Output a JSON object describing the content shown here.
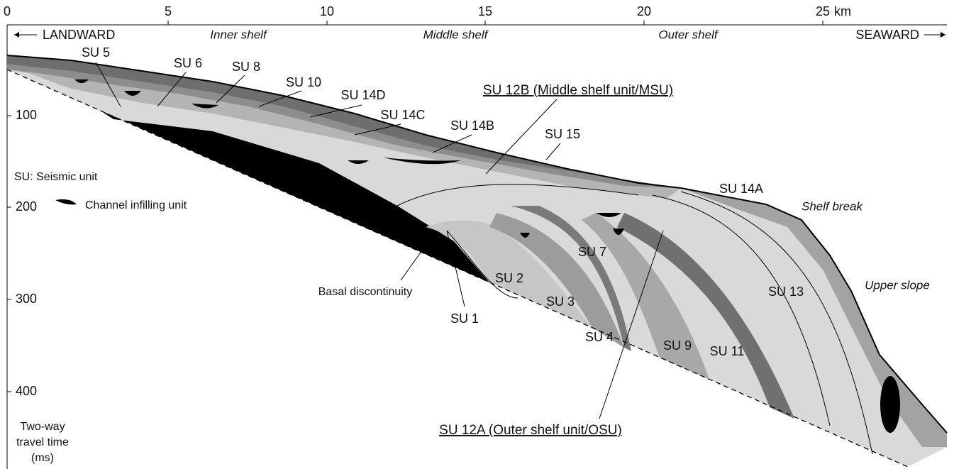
{
  "x_axis": {
    "ticks": [
      0,
      5,
      10,
      15,
      20,
      25
    ],
    "unit": "km"
  },
  "y_axis": {
    "ticks": [
      100,
      200,
      300,
      400
    ],
    "label": [
      "Two-way",
      "travel time",
      "(ms)"
    ]
  },
  "directions": {
    "landward": "LANDWARD",
    "seaward": "SEAWARD"
  },
  "zones": [
    "Inner shelf",
    "Middle shelf",
    "Outer shelf"
  ],
  "legend": {
    "seismic_unit": "SU: Seismic unit",
    "channel": "Channel infilling unit"
  },
  "units": [
    "SU 5",
    "SU 6",
    "SU 8",
    "SU 10",
    "SU 14D",
    "SU 14C",
    "SU 14B",
    "SU 15",
    "SU 14A",
    "SU 7",
    "SU 2",
    "SU 3",
    "SU 1",
    "SU 4",
    "SU 9",
    "SU 11",
    "SU 13"
  ],
  "main_units": [
    "SU 12B (Middle shelf unit/MSU)",
    "SU 12A (Outer shelf unit/OSU)"
  ],
  "annotations": [
    "Shelf break",
    "Upper slope",
    "Basal discontinuity"
  ]
}
